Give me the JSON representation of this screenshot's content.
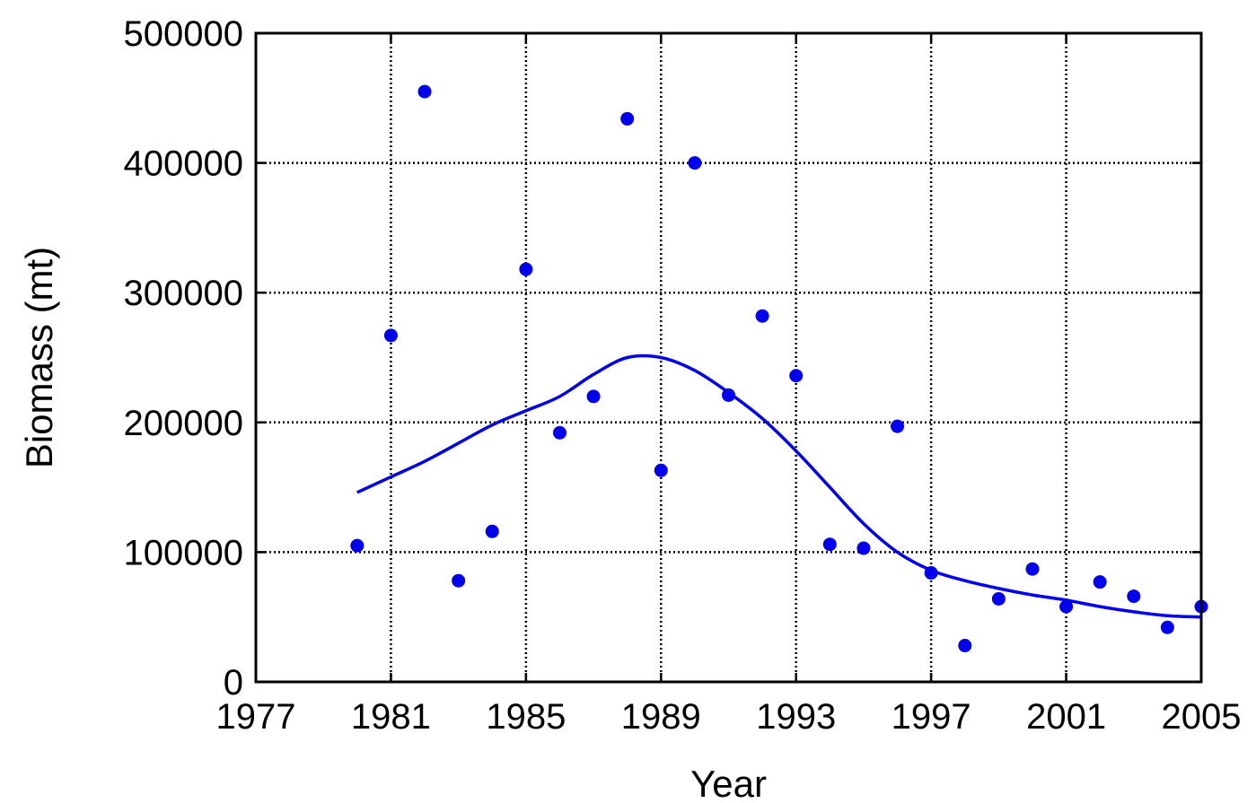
{
  "chart_data": {
    "type": "scatter",
    "xlabel": "Year",
    "ylabel": "Biomass (mt)",
    "xlim": [
      1977,
      2005
    ],
    "ylim": [
      0,
      500000
    ],
    "x_ticks": [
      1977,
      1981,
      1985,
      1989,
      1993,
      1997,
      2001,
      2005
    ],
    "y_ticks": [
      0,
      100000,
      200000,
      300000,
      400000,
      500000
    ],
    "x_tick_labels": [
      "1977",
      "1981",
      "1985",
      "1989",
      "1993",
      "1997",
      "2001",
      "2005"
    ],
    "y_tick_labels": [
      "0",
      "100000",
      "200000",
      "300000",
      "400000",
      "500000"
    ],
    "grid": true,
    "colors": {
      "series": "#0000ee",
      "axes": "#000000"
    },
    "series": [
      {
        "type": "scatter",
        "x": [
          1980,
          1981,
          1982,
          1983,
          1984,
          1985,
          1986,
          1987,
          1988,
          1989,
          1990,
          1991,
          1992,
          1993,
          1994,
          1995,
          1996,
          1997,
          1998,
          1999,
          2000,
          2001,
          2002,
          2003,
          2004,
          2005
        ],
        "y": [
          105000,
          267000,
          455000,
          78000,
          116000,
          318000,
          192000,
          220000,
          434000,
          163000,
          400000,
          221000,
          282000,
          236000,
          106000,
          103000,
          197000,
          84000,
          28000,
          64000,
          87000,
          58000,
          77000,
          66000,
          42000,
          58000
        ]
      },
      {
        "type": "line",
        "x": [
          1980,
          1981,
          1982,
          1983,
          1984,
          1985,
          1986,
          1987,
          1988,
          1989,
          1990,
          1991,
          1992,
          1993,
          1994,
          1995,
          1996,
          1997,
          1998,
          1999,
          2000,
          2001,
          2002,
          2003,
          2004,
          2005
        ],
        "y": [
          146000,
          158000,
          170000,
          184000,
          198000,
          209000,
          220000,
          237000,
          250000,
          250000,
          240000,
          223000,
          203000,
          178000,
          150000,
          122000,
          100000,
          86000,
          78000,
          72000,
          67000,
          63000,
          58000,
          54000,
          51000,
          50000
        ]
      }
    ]
  }
}
